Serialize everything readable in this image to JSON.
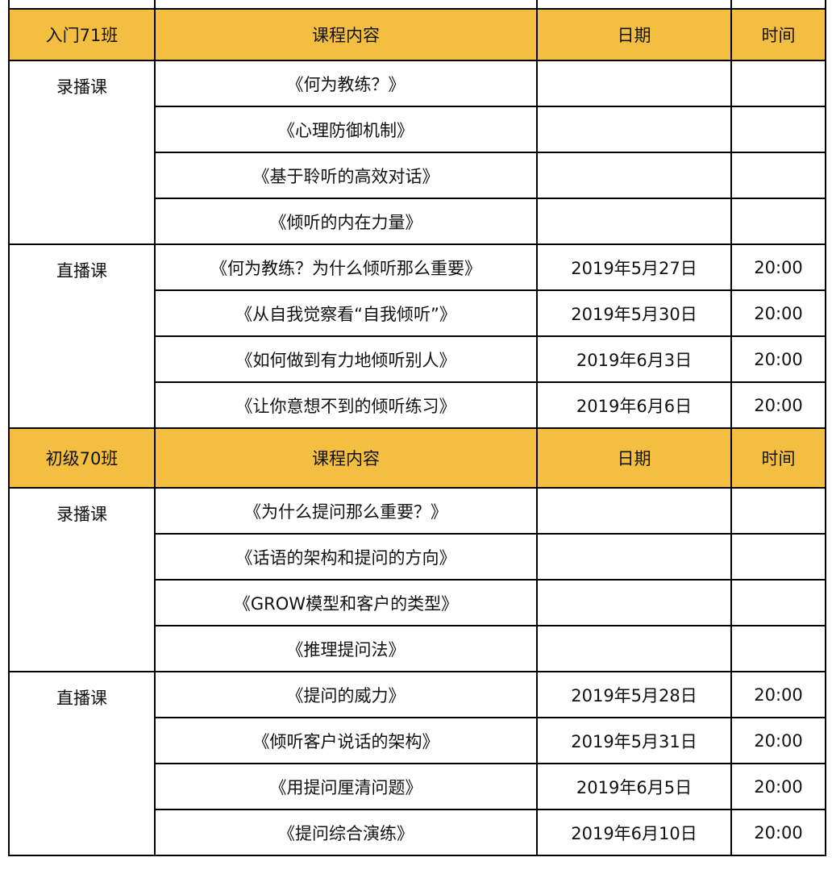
{
  "header_color": "#F4BF41",
  "sections": [
    {
      "header": [
        "入门71班",
        "课程内容",
        "日期",
        "时间"
      ],
      "groups": [
        {
          "label": "录播课",
          "rows": [
            {
              "content": "《何为教练？》",
              "date": "",
              "time": ""
            },
            {
              "content": "《心理防御机制》",
              "date": "",
              "time": ""
            },
            {
              "content": "《基于聆听的高效对话》",
              "date": "",
              "time": ""
            },
            {
              "content": "《倾听的内在力量》",
              "date": "",
              "time": ""
            }
          ]
        },
        {
          "label": "直播课",
          "rows": [
            {
              "content": "《何为教练？为什么倾听那么重要》",
              "date": "2019年5月27日",
              "time": "20:00"
            },
            {
              "content": "《从自我觉察看“自我倾听”》",
              "date": "2019年5月30日",
              "time": "20:00"
            },
            {
              "content": "《如何做到有力地倾听别人》",
              "date": "2019年6月3日",
              "time": "20:00"
            },
            {
              "content": "《让你意想不到的倾听练习》",
              "date": "2019年6月6日",
              "time": "20:00"
            }
          ]
        }
      ]
    },
    {
      "header": [
        "初级70班",
        "课程内容",
        "日期",
        "时间"
      ],
      "groups": [
        {
          "label": "录播课",
          "rows": [
            {
              "content": "《为什么提问那么重要？》",
              "date": "",
              "time": ""
            },
            {
              "content": "《话语的架构和提问的方向》",
              "date": "",
              "time": ""
            },
            {
              "content": "《GROW模型和客户的类型》",
              "date": "",
              "time": ""
            },
            {
              "content": "《推理提问法》",
              "date": "",
              "time": ""
            }
          ]
        },
        {
          "label": "直播课",
          "rows": [
            {
              "content": "《提问的威力》",
              "date": "2019年5月28日",
              "time": "20:00"
            },
            {
              "content": "《倾听客户说话的架构》",
              "date": "2019年5月31日",
              "time": "20:00"
            },
            {
              "content": "《用提问厘清问题》",
              "date": "2019年6月5日",
              "time": "20:00"
            },
            {
              "content": "《提问综合演练》",
              "date": "2019年6月10日",
              "time": "20:00"
            }
          ]
        }
      ]
    }
  ]
}
